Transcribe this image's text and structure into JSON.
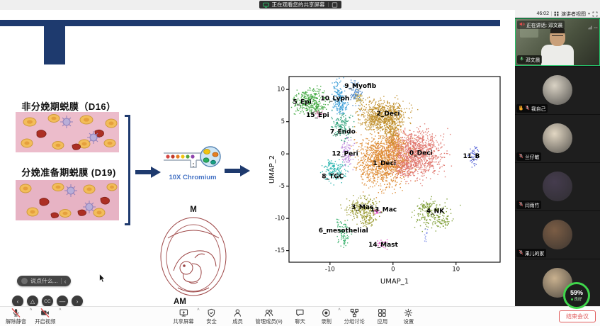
{
  "titlebar": {
    "share_banner": "正在观看您的共享屏幕"
  },
  "sidebar": {
    "timer": "46:02",
    "view_mode": "演讲者视图",
    "speaking_label": "正在讲话: 邓文晨",
    "participants": [
      {
        "name": "邓文晨",
        "type": "video",
        "active": true,
        "mic": "on"
      },
      {
        "name": "我自己",
        "type": "avatar",
        "mic": "off",
        "hand": true,
        "avatar": "#d9d2c4"
      },
      {
        "name": "兰仔敏",
        "type": "avatar",
        "mic": "off",
        "avatar": "#e2d7c3"
      },
      {
        "name": "闫雨竹",
        "type": "avatar",
        "mic": "off",
        "avatar": "#453c4e"
      },
      {
        "name": "果儿的家",
        "type": "avatar",
        "mic": "off",
        "avatar": "#7b5d45"
      },
      {
        "name": "",
        "type": "avatar",
        "mic": "off",
        "avatar": "#c9b18f"
      }
    ],
    "net_badge": {
      "percent": "59%",
      "status": "良好"
    }
  },
  "slide": {
    "heading_top": "非分娩期蜕膜（D16）",
    "heading_bottom": "分娩准备期蜕膜 (D19)",
    "pipeline_label": "10X Chromium",
    "embryo_top": "M",
    "embryo_bottom": "AM"
  },
  "chart_data": {
    "type": "scatter",
    "title": "",
    "xlabel": "UMAP_1",
    "ylabel": "UMAP_2",
    "xlim": [
      -16.5,
      17
    ],
    "ylim": [
      -16.8,
      12
    ],
    "xticks": [
      -10,
      0,
      10
    ],
    "yticks": [
      -15,
      -10,
      -5,
      0,
      5,
      10
    ],
    "clusters": [
      {
        "name": "0_Deci",
        "color": "#e0746b",
        "label_pos": [
          2.6,
          0.1
        ],
        "blobs": [
          [
            3.4,
            0.2,
            2.2,
            1.8,
            1100
          ],
          [
            1.6,
            -1.9,
            0.9,
            0.8,
            150
          ]
        ]
      },
      {
        "name": "1_Deci",
        "color": "#dd8a31",
        "label_pos": [
          -3.2,
          -1.5
        ],
        "blobs": [
          [
            -1.8,
            -0.9,
            1.9,
            1.9,
            1100
          ],
          [
            0.2,
            1.6,
            0.8,
            1.1,
            150
          ]
        ]
      },
      {
        "name": "2_Deci",
        "color": "#c08f2b",
        "label_pos": [
          -2.6,
          6.2
        ],
        "blobs": [
          [
            -1.6,
            6.1,
            1.9,
            1.2,
            650
          ],
          [
            -0.3,
            4.1,
            0.7,
            1.2,
            180
          ],
          [
            -3.3,
            5.1,
            0.8,
            0.6,
            90
          ]
        ]
      },
      {
        "name": "3_Mac",
        "color": "#9a9a30",
        "label_pos": [
          -6.6,
          -8.3
        ],
        "blobs": [
          [
            -4.9,
            -8.4,
            1.2,
            0.9,
            240
          ],
          [
            -3.9,
            -10.2,
            0.5,
            0.7,
            60
          ]
        ]
      },
      {
        "name": "4_NK",
        "color": "#7a9a2e",
        "label_pos": [
          5.3,
          -8.9
        ],
        "blobs": [
          [
            6.2,
            -9.4,
            1.4,
            1.1,
            180
          ],
          [
            5.2,
            -8.1,
            0.6,
            0.4,
            40
          ],
          [
            8.2,
            -10.6,
            0.4,
            0.5,
            25
          ]
        ]
      },
      {
        "name": "5_Epi",
        "color": "#3fa83f",
        "label_pos": [
          -15.9,
          8.0
        ],
        "blobs": [
          [
            -13.2,
            8.3,
            1.3,
            1.0,
            300
          ],
          [
            -12.2,
            7.2,
            0.5,
            0.4,
            40
          ]
        ]
      },
      {
        "name": "6_mesothelial",
        "color": "#35b06a",
        "label_pos": [
          -11.8,
          -11.9
        ],
        "blobs": [
          [
            -8.0,
            -12.4,
            0.5,
            1.3,
            70
          ],
          [
            -8.7,
            -10.7,
            0.3,
            0.4,
            12
          ]
        ]
      },
      {
        "name": "7_Endo",
        "color": "#2ea17a",
        "label_pos": [
          -10.0,
          3.4
        ],
        "blobs": [
          [
            -8.1,
            4.4,
            0.7,
            1.1,
            140
          ]
        ]
      },
      {
        "name": "8_TGC",
        "color": "#26b3ad",
        "label_pos": [
          -11.3,
          -3.5
        ],
        "blobs": [
          [
            -9.3,
            -2.7,
            0.9,
            0.8,
            130
          ],
          [
            -9.9,
            -1.7,
            0.4,
            0.4,
            25
          ]
        ]
      },
      {
        "name": "9_Myofib",
        "color": "#4a86c9",
        "label_pos": [
          -7.7,
          10.5
        ],
        "blobs": [
          [
            -5.9,
            9.4,
            0.5,
            0.9,
            100
          ]
        ]
      },
      {
        "name": "",
        "color": "#c9a94a",
        "label_pos": null,
        "blobs": [
          [
            -5.4,
            8.7,
            0.4,
            0.5,
            45
          ]
        ]
      },
      {
        "name": "10_Lyph",
        "color": "#3f9fd8",
        "label_pos": [
          -11.5,
          8.6
        ],
        "blobs": [
          [
            -8.6,
            8.8,
            0.5,
            1.2,
            150
          ],
          [
            -8.1,
            7.6,
            0.4,
            0.5,
            35
          ]
        ]
      },
      {
        "name": "11_B",
        "color": "#5866d8",
        "label_pos": [
          11.1,
          -0.4
        ],
        "blobs": [
          [
            12.7,
            0.0,
            0.35,
            0.7,
            50
          ]
        ]
      },
      {
        "name": "12_Peri",
        "color": "#b87fd9",
        "label_pos": [
          -9.7,
          0.0
        ],
        "blobs": [
          [
            -7.3,
            0.3,
            0.5,
            1.0,
            90
          ]
        ]
      },
      {
        "name": "13_Mac",
        "color": "#e049c0",
        "label_pos": [
          -3.6,
          -8.7
        ],
        "blobs": [
          [
            -2.5,
            -8.9,
            0.3,
            0.3,
            18
          ]
        ]
      },
      {
        "name": "14_Mast",
        "color": "#e049c0",
        "label_pos": [
          -3.9,
          -14.1
        ],
        "blobs": [
          [
            -1.9,
            -13.9,
            0.4,
            0.3,
            22
          ]
        ]
      },
      {
        "name": "15_Epi",
        "color": "#ef6db7",
        "label_pos": [
          -13.8,
          6.0
        ],
        "blobs": [
          [
            -11.9,
            6.4,
            0.35,
            0.25,
            16
          ]
        ]
      },
      {
        "name": "",
        "color": "#7f8fe8",
        "label_pos": null,
        "blobs": [
          [
            5.2,
            -12.5,
            0.15,
            0.5,
            12
          ]
        ]
      }
    ]
  },
  "toolbar": {
    "left": [
      {
        "label": "解除静音",
        "icon": "mic-off",
        "caret": true
      },
      {
        "label": "开启视频",
        "icon": "cam-off",
        "caret": true
      }
    ],
    "center": [
      {
        "label": "共享屏幕",
        "icon": "share",
        "caret": true
      },
      {
        "label": "安全",
        "icon": "shield"
      },
      {
        "label": "成员",
        "icon": "person"
      },
      {
        "label": "管理成员(9)",
        "icon": "people"
      },
      {
        "label": "聊天",
        "icon": "chat"
      },
      {
        "label": "录制",
        "icon": "record",
        "caret": true
      },
      {
        "label": "分组讨论",
        "icon": "breakout"
      },
      {
        "label": "应用",
        "icon": "apps"
      },
      {
        "label": "设置",
        "icon": "gear"
      }
    ],
    "end_button": "结束会议"
  },
  "caption": {
    "placeholder": "说点什么...",
    "controls": [
      "‹",
      "△",
      "CC",
      "—",
      "›"
    ]
  }
}
